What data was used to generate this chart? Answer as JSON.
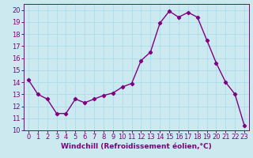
{
  "x": [
    0,
    1,
    2,
    3,
    4,
    5,
    6,
    7,
    8,
    9,
    10,
    11,
    12,
    13,
    14,
    15,
    16,
    17,
    18,
    19,
    20,
    21,
    22,
    23
  ],
  "y": [
    14.2,
    13.0,
    12.6,
    11.4,
    11.4,
    12.6,
    12.3,
    12.6,
    12.9,
    13.1,
    13.6,
    13.9,
    15.8,
    16.5,
    18.9,
    19.9,
    19.4,
    19.8,
    19.4,
    17.5,
    15.6,
    14.0,
    13.0,
    10.4
  ],
  "line_color": "#800080",
  "marker": "D",
  "markersize": 2.2,
  "linewidth": 1.0,
  "bg_color": "#cce9f0",
  "grid_color": "#aaddee",
  "xlabel": "Windchill (Refroidissement éolien,°C)",
  "xlabel_fontsize": 6.5,
  "tick_fontsize": 6.0,
  "ylim": [
    10,
    20.5
  ],
  "xlim": [
    -0.5,
    23.5
  ],
  "yticks": [
    10,
    11,
    12,
    13,
    14,
    15,
    16,
    17,
    18,
    19,
    20
  ],
  "xticks": [
    0,
    1,
    2,
    3,
    4,
    5,
    6,
    7,
    8,
    9,
    10,
    11,
    12,
    13,
    14,
    15,
    16,
    17,
    18,
    19,
    20,
    21,
    22,
    23
  ]
}
